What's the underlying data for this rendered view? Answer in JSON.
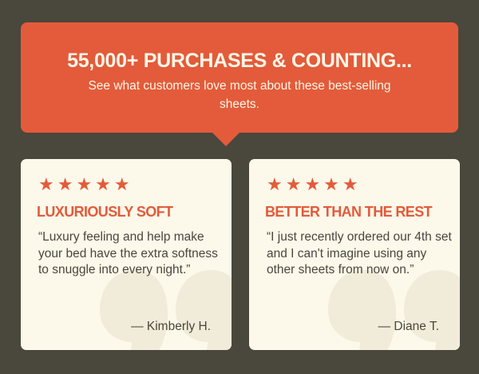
{
  "banner": {
    "title": "55,000+ PURCHASES & COUNTING...",
    "subtitle": "See what customers love most about these best-selling sheets."
  },
  "reviews": [
    {
      "stars": "★★★★★",
      "rating": 5,
      "heading": "LUXURIOUSLY SOFT",
      "text": "“Luxury feeling and help make your bed have the extra softness to snuggle into every night.”",
      "author": "— Kimberly H."
    },
    {
      "stars": "★★★★★",
      "rating": 5,
      "heading": "BETTER THAN THE REST",
      "text": "“I just recently ordered our 4th set and I can't imagine using any other sheets from now on.”",
      "author": "— Diane T."
    }
  ],
  "colors": {
    "background": "#4a473c",
    "accent": "#e35b3a",
    "card": "#fcf8ea"
  }
}
